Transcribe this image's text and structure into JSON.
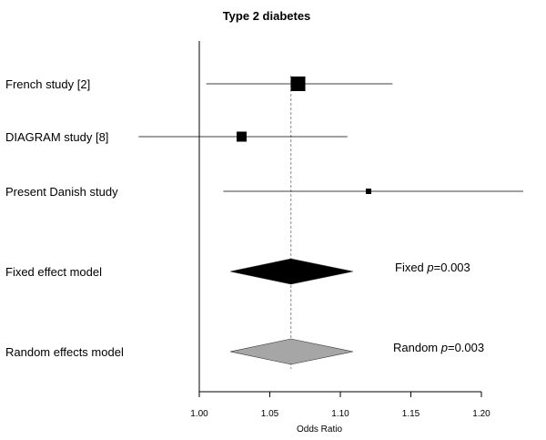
{
  "chart_data": {
    "type": "forest",
    "title": "Type 2 diabetes",
    "xlabel": "Odds Ratio",
    "xlim": [
      1.0,
      1.2
    ],
    "xticks": [
      "1.00",
      "1.05",
      "1.10",
      "1.15",
      "1.20"
    ],
    "reference_line": 1.065,
    "studies": [
      {
        "label": "French study [2]",
        "or": 1.07,
        "ci": [
          1.005,
          1.137
        ],
        "weight": "large"
      },
      {
        "label": "DIAGRAM study [8]",
        "or": 1.03,
        "ci": [
          0.957,
          1.105
        ],
        "weight": "medium"
      },
      {
        "label": "Present Danish study",
        "or": 1.12,
        "ci": [
          1.017,
          1.232
        ],
        "weight": "small"
      }
    ],
    "summaries": [
      {
        "label": "Fixed effect model",
        "estimate": 1.065,
        "ci": [
          1.022,
          1.109
        ],
        "color": "#000000",
        "note_prefix": "Fixed ",
        "note_p": "p",
        "note_value": "=0.003"
      },
      {
        "label": "Random effects model",
        "estimate": 1.065,
        "ci": [
          1.022,
          1.109
        ],
        "color": "#a6a6a6",
        "note_prefix": "Random ",
        "note_p": "p",
        "note_value": "=0.003"
      }
    ]
  }
}
